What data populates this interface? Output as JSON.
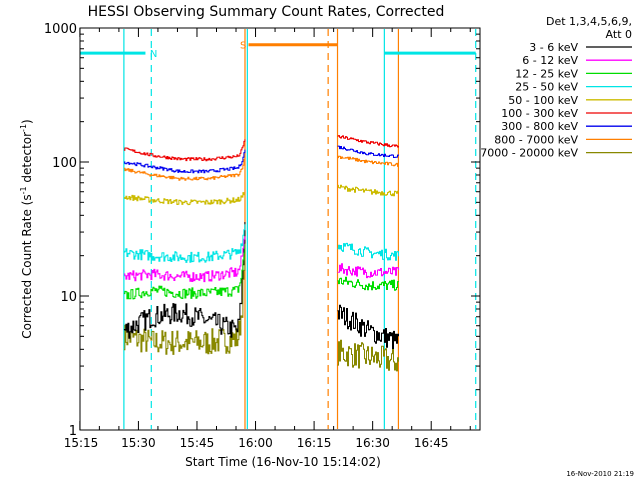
{
  "chart_data": {
    "type": "line",
    "title": "HESSI Observing Summary Count Rates, Corrected",
    "xlabel": "Start Time (16-Nov-10 15:14:02)",
    "ylabel_main": "Corrected Count Rate (s",
    "ylabel_sup1": "-1",
    "ylabel_mid": " detector",
    "ylabel_sup2": "-1",
    "ylabel_end": ")",
    "y_scale": "log",
    "ylim": [
      1,
      1000
    ],
    "xlim": [
      15.2506,
      16.9583
    ],
    "x_ticks": [
      {
        "x": 15.25,
        "label": "15:15"
      },
      {
        "x": 15.5,
        "label": "15:30"
      },
      {
        "x": 15.75,
        "label": "15:45"
      },
      {
        "x": 16.0,
        "label": "16:00"
      },
      {
        "x": 16.25,
        "label": "16:15"
      },
      {
        "x": 16.5,
        "label": "16:30"
      },
      {
        "x": 16.75,
        "label": "16:45"
      }
    ],
    "y_ticks": [
      {
        "y": 1,
        "label": "1"
      },
      {
        "y": 10,
        "label": "10"
      },
      {
        "y": 100,
        "label": "100"
      },
      {
        "y": 1000,
        "label": "1000"
      }
    ],
    "legend": {
      "placement": "top-right",
      "header1": "Det 1,3,4,5,6,9,",
      "header2": "Att 0",
      "entries": [
        {
          "label": "3 - 6 keV",
          "color": "#000000"
        },
        {
          "label": "6 - 12 keV",
          "color": "#ff00ff"
        },
        {
          "label": "12 - 25 keV",
          "color": "#00dd00"
        },
        {
          "label": "25 - 50 keV",
          "color": "#00e5e5"
        },
        {
          "label": "50 - 100 keV",
          "color": "#ccbb00"
        },
        {
          "label": "100 - 300 keV",
          "color": "#ee0000"
        },
        {
          "label": "300 - 800 keV",
          "color": "#0000ee"
        },
        {
          "label": "800 - 7000 keV",
          "color": "#ff7f00"
        },
        {
          "label": "7000 - 20000 keV",
          "color": "#888800"
        }
      ]
    },
    "segment_a": [
      15.438,
      15.955
    ],
    "segment_b": [
      16.35,
      16.61
    ],
    "series": [
      {
        "color": "#888800",
        "a": [
          5,
          4.5,
          4.5,
          4.5,
          4.8,
          20
        ],
        "b": [
          3.8,
          3.5,
          3.2
        ],
        "noise": 0.1
      },
      {
        "color": "#000000",
        "a": [
          5.5,
          7,
          7.5,
          6.5,
          5.5,
          40
        ],
        "b": [
          7.5,
          5.5,
          4.5
        ],
        "noise": 0.08
      },
      {
        "color": "#00dd00",
        "a": [
          10,
          11,
          10.5,
          10.5,
          11,
          25
        ],
        "b": [
          13,
          12,
          12
        ],
        "noise": 0.04
      },
      {
        "color": "#ff00ff",
        "a": [
          14,
          14.5,
          14,
          14,
          15,
          30
        ],
        "b": [
          16,
          15,
          15
        ],
        "noise": 0.04
      },
      {
        "color": "#00e5e5",
        "a": [
          21,
          20,
          19.5,
          19.5,
          21,
          35
        ],
        "b": [
          24,
          21,
          20
        ],
        "noise": 0.04
      },
      {
        "color": "#ccbb00",
        "a": [
          55,
          52,
          50,
          50,
          52,
          60
        ],
        "b": [
          65,
          60,
          58
        ],
        "noise": 0.02
      },
      {
        "color": "#ff7f00",
        "a": [
          88,
          80,
          75,
          75,
          80,
          110
        ],
        "b": [
          110,
          100,
          95
        ],
        "noise": 0.012
      },
      {
        "color": "#0000ee",
        "a": [
          100,
          92,
          85,
          85,
          90,
          125
        ],
        "b": [
          130,
          115,
          110
        ],
        "noise": 0.012
      },
      {
        "color": "#ee0000",
        "a": [
          125,
          112,
          105,
          105,
          110,
          150
        ],
        "b": [
          155,
          140,
          130
        ],
        "noise": 0.012
      }
    ],
    "flags": [
      {
        "label": "N",
        "color": "#00e5e5",
        "x_start": 15.2506,
        "x_end": 15.53,
        "y": 650,
        "label_x": 15.565
      },
      {
        "label": "S",
        "color": "#ff7f00",
        "x_start": 15.97,
        "x_end": 16.35,
        "y": 750,
        "label_x": 15.947
      },
      {
        "label": "",
        "color": "#00e5e5",
        "x_start": 16.55,
        "x_end": 16.94,
        "y": 650,
        "label_x": 0
      }
    ],
    "vlines": [
      {
        "x": 15.438,
        "color": "#00e5e5",
        "dashed": false
      },
      {
        "x": 15.555,
        "color": "#00e5e5",
        "dashed": true
      },
      {
        "x": 15.955,
        "color": "#ff7f00",
        "dashed": false
      },
      {
        "x": 15.965,
        "color": "#00e5e5",
        "dashed": false
      },
      {
        "x": 16.31,
        "color": "#ff7f00",
        "dashed": true
      },
      {
        "x": 16.35,
        "color": "#ff7f00",
        "dashed": false
      },
      {
        "x": 16.55,
        "color": "#00e5e5",
        "dashed": false
      },
      {
        "x": 16.61,
        "color": "#ff7f00",
        "dashed": false
      },
      {
        "x": 16.94,
        "color": "#00e5e5",
        "dashed": true
      }
    ]
  },
  "footer_timestamp": "16-Nov-2010 21:19"
}
